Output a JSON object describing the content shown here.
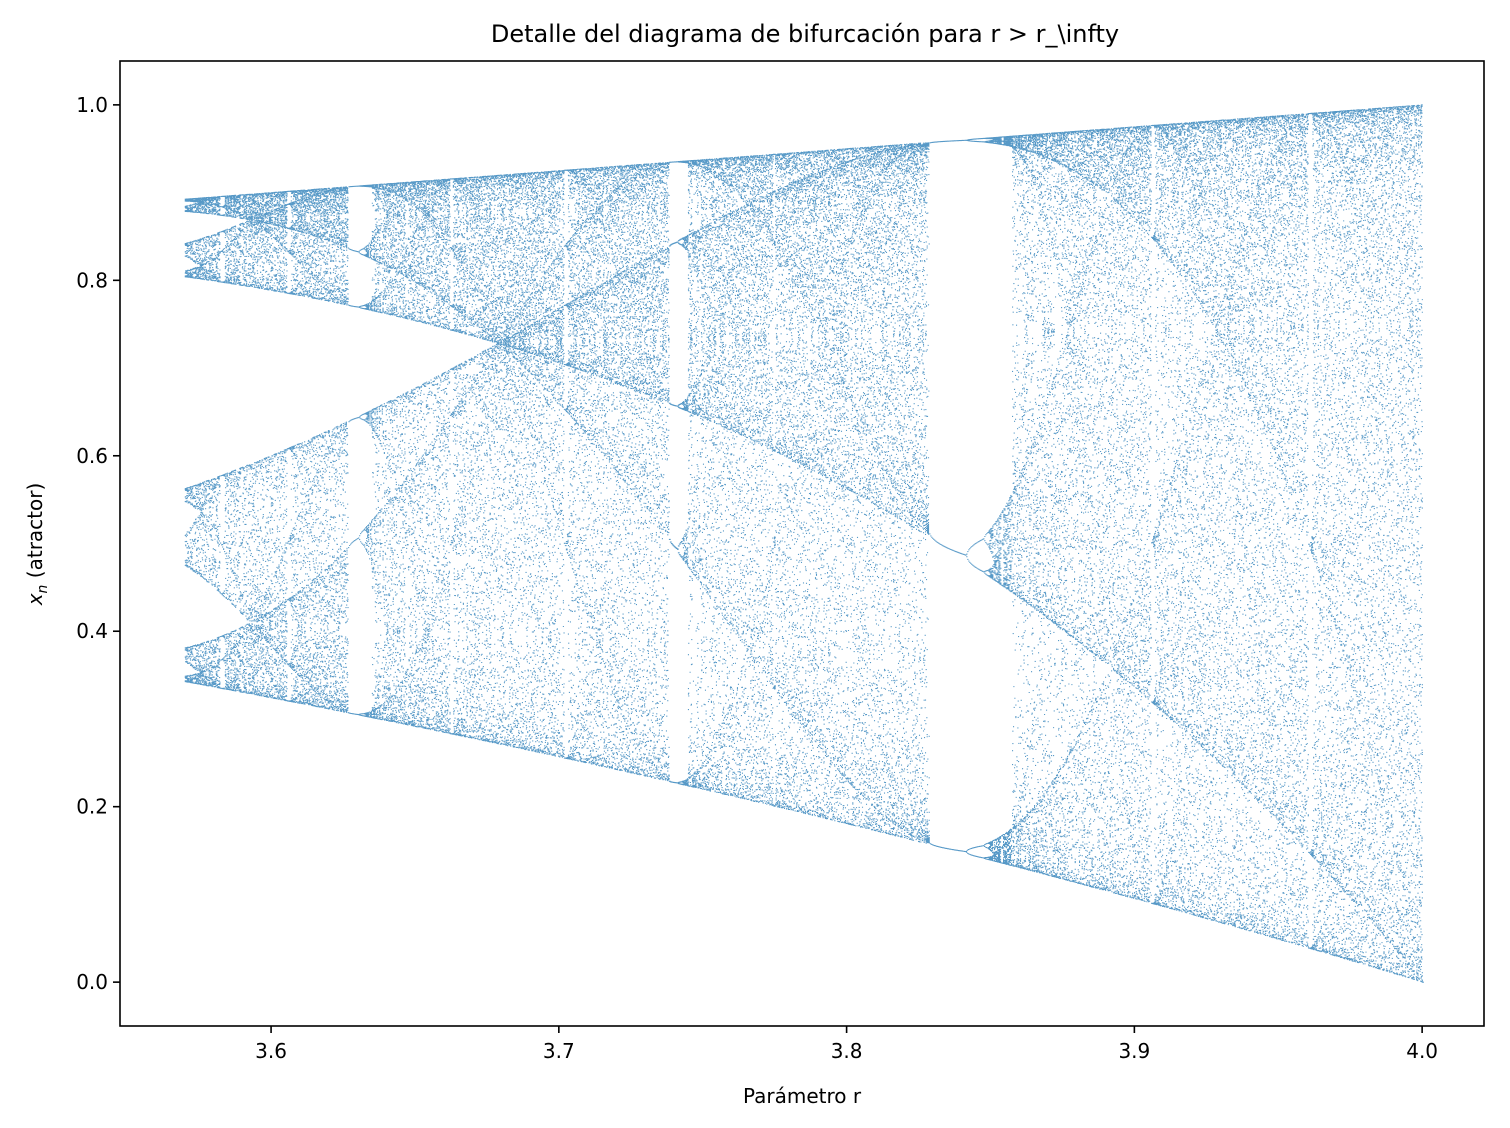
{
  "chart_data": {
    "type": "scatter",
    "title": "Detalle del diagrama de bifurcación para r > r_\\infty",
    "xlabel": "Parámetro r",
    "ylabel_var": "x",
    "ylabel_sub": "n",
    "ylabel_rest": " (atractor)",
    "xlim": [
      3.5475,
      4.0215
    ],
    "ylim": [
      -0.05,
      1.05
    ],
    "xticks": [
      3.6,
      3.7,
      3.8,
      3.9,
      4.0
    ],
    "xtick_labels": [
      "3.6",
      "3.7",
      "3.8",
      "3.9",
      "4.0"
    ],
    "yticks": [
      0.0,
      0.2,
      0.4,
      0.6,
      0.8,
      1.0
    ],
    "ytick_labels": [
      "0.0",
      "0.2",
      "0.4",
      "0.6",
      "0.8",
      "1.0"
    ],
    "x_range": [
      3.57,
      4.0
    ],
    "map": "logistic x_{n+1} = r x_n (1 - x_n)",
    "grid": false,
    "legend": "none",
    "marker_color": "#1f77b4",
    "text_color": "#000000",
    "background": "#ffffff"
  }
}
